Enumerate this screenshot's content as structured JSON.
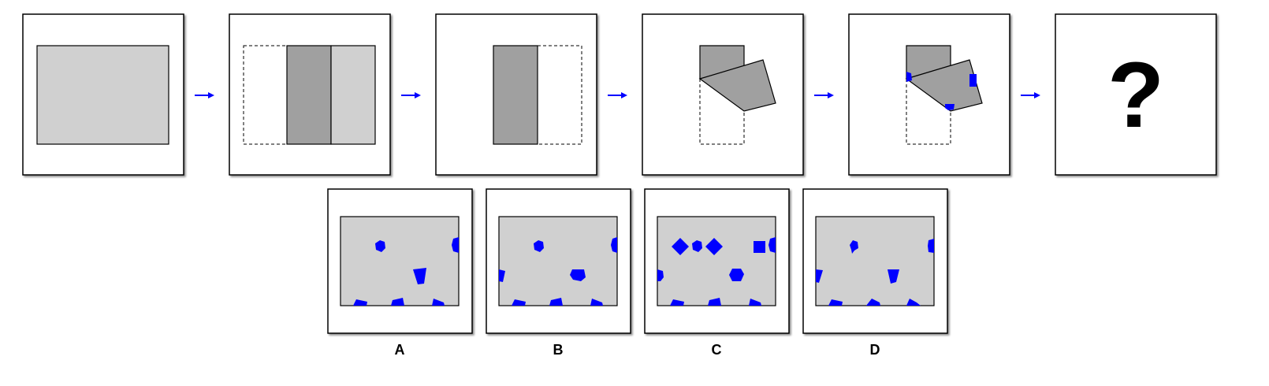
{
  "colors": {
    "paper": "#d0d0d0",
    "folded": "#a0a0a0",
    "hole": "#0000ff",
    "arrow": "#0000ff",
    "border": "#000000"
  },
  "sequence": {
    "steps": [
      "unfolded-paper",
      "fold-left-third",
      "fold-right-third",
      "fold-top-diagonal",
      "punch-holes"
    ],
    "question": "?"
  },
  "options": [
    {
      "label": "A"
    },
    {
      "label": "B"
    },
    {
      "label": "C"
    },
    {
      "label": "D"
    }
  ]
}
